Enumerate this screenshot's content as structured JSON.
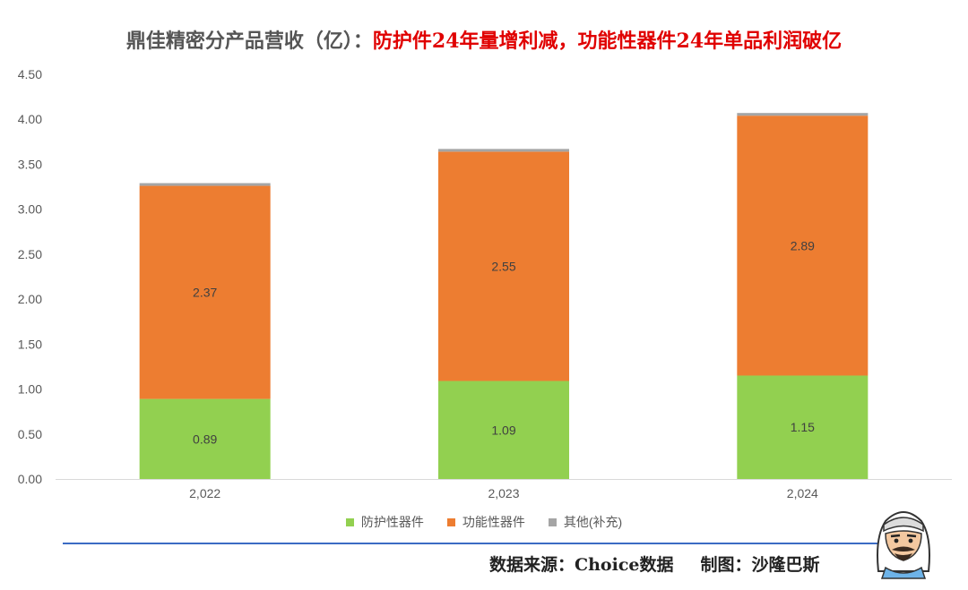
{
  "title": {
    "lead": "鼎佳精密分产品营收（亿）：",
    "highlight": "防护件24年量增利减，功能性器件24年单品利润破亿"
  },
  "footer": {
    "source": "数据来源：Choice数据",
    "author": "制图：沙隆巴斯"
  },
  "chart_data": {
    "type": "bar",
    "stacked": true,
    "categories": [
      "2,022",
      "2,023",
      "2,024"
    ],
    "series": [
      {
        "name": "防护性器件",
        "values": [
          0.89,
          1.09,
          1.15
        ],
        "color": "#92d050",
        "labels": [
          "0.89",
          "1.09",
          "1.15"
        ]
      },
      {
        "name": "功能性器件",
        "values": [
          2.37,
          2.55,
          2.89
        ],
        "color": "#ed7d31",
        "labels": [
          "2.37",
          "2.55",
          "2.89"
        ]
      },
      {
        "name": "其他(补充)",
        "values": [
          0.03,
          0.03,
          0.03
        ],
        "color": "#a5a5a5",
        "labels": [
          "",
          "",
          ""
        ]
      }
    ],
    "yticks": [
      "0.00",
      "0.50",
      "1.00",
      "1.50",
      "2.00",
      "2.50",
      "3.00",
      "3.50",
      "4.00",
      "4.50"
    ],
    "ylim": [
      0,
      4.5
    ],
    "grid": false,
    "legend": "bottom"
  }
}
